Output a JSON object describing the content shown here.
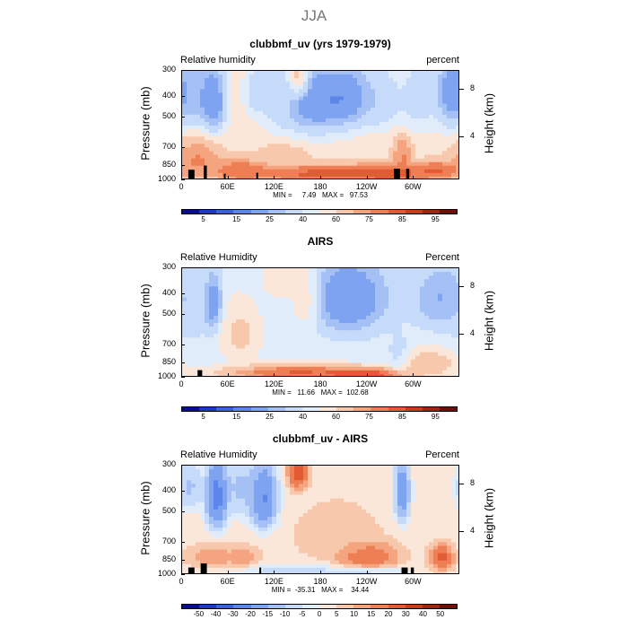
{
  "figure": {
    "title": "JJA"
  },
  "colors": {
    "rh_palette": [
      "#0a0d94",
      "#1f38c4",
      "#3a62dd",
      "#5d86ea",
      "#7ea3f0",
      "#a4c0f5",
      "#c6daf9",
      "#e1ecfb",
      "#fbe6da",
      "#f8c8ad",
      "#f4a47f",
      "#ee7f55",
      "#e25b33",
      "#c83d1c",
      "#a02412",
      "#6e0f09"
    ],
    "diff_palette": [
      "#0a0d94",
      "#1f38c4",
      "#3a62dd",
      "#5d86ea",
      "#7ea3f0",
      "#a4c0f5",
      "#c6daf9",
      "#e1ecfb",
      "#fbe6da",
      "#f8c8ad",
      "#f4a47f",
      "#ee7f55",
      "#e25b33",
      "#c83d1c",
      "#a02412",
      "#6e0f09"
    ],
    "land": "#000000"
  },
  "chart_data": [
    {
      "type": "heatmap",
      "title": "clubbmf_uv (yrs 1979-1979)",
      "variable_label": "Relative humidity",
      "unit_label": "percent",
      "xlabel": "",
      "ylabel": "Pressure (mb)",
      "right_ylabel": "Height (km)",
      "x_ticks": [
        "0",
        "60E",
        "120E",
        "180",
        "120W",
        "60W"
      ],
      "y_ticks": [
        "300",
        "400",
        "500",
        "700",
        "850",
        "1000"
      ],
      "right_ticks": [
        "8",
        "4"
      ],
      "minmax_text": "MIN =     7.49   MAX =   97.53",
      "min": 7.49,
      "max": 97.53,
      "colorbar_labels": [
        "5",
        "15",
        "25",
        "40",
        "60",
        "75",
        "85",
        "95"
      ],
      "features": [
        {
          "lon": 40,
          "p": 420,
          "v": 8,
          "rx": 14,
          "rp": 140
        },
        {
          "lon": 100,
          "p": 380,
          "v": 25,
          "rx": 14,
          "rp": 80
        },
        {
          "lon": 125,
          "p": 430,
          "v": 35,
          "rx": 12,
          "rp": 120
        },
        {
          "lon": 150,
          "p": 320,
          "v": 85,
          "rx": 10,
          "rp": 60
        },
        {
          "lon": 170,
          "p": 420,
          "v": 10,
          "rx": 40,
          "rp": 140
        },
        {
          "lon": 215,
          "p": 400,
          "v": 12,
          "rx": 30,
          "rp": 120
        },
        {
          "lon": 260,
          "p": 420,
          "v": 25,
          "rx": 18,
          "rp": 100
        },
        {
          "lon": 305,
          "p": 400,
          "v": 30,
          "rx": 20,
          "rp": 130
        },
        {
          "lon": 350,
          "p": 380,
          "v": 10,
          "rx": 20,
          "rp": 140
        },
        {
          "lon": 20,
          "p": 400,
          "v": 20,
          "rx": 15,
          "rp": 120
        },
        {
          "lon": 20,
          "p": 800,
          "v": 82,
          "rx": 25,
          "rp": 150
        },
        {
          "lon": 75,
          "p": 900,
          "v": 85,
          "rx": 30,
          "rp": 100
        },
        {
          "lon": 180,
          "p": 930,
          "v": 90,
          "rx": 80,
          "rp": 80
        },
        {
          "lon": 270,
          "p": 930,
          "v": 90,
          "rx": 40,
          "rp": 80
        },
        {
          "lon": 285,
          "p": 750,
          "v": 82,
          "rx": 10,
          "rp": 120
        },
        {
          "lon": 330,
          "p": 900,
          "v": 88,
          "rx": 25,
          "rp": 80
        },
        {
          "lon": 130,
          "p": 780,
          "v": 70,
          "rx": 25,
          "rp": 90
        }
      ],
      "background": 55,
      "land": [
        [
          8,
          16,
          890
        ],
        [
          28,
          32,
          850
        ],
        [
          54,
          56,
          930
        ],
        [
          96,
          98,
          920
        ],
        [
          274,
          282,
          880
        ],
        [
          290,
          294,
          880
        ]
      ]
    },
    {
      "type": "heatmap",
      "title": "AIRS",
      "variable_label": "Relative Humidity",
      "unit_label": "Percent",
      "xlabel": "",
      "ylabel": "Pressure (mb)",
      "right_ylabel": "Height (km)",
      "x_ticks": [
        "0",
        "60E",
        "120E",
        "180",
        "120W",
        "60W"
      ],
      "y_ticks": [
        "300",
        "400",
        "500",
        "700",
        "850",
        "1000"
      ],
      "right_ticks": [
        "8",
        "4"
      ],
      "minmax_text": "MIN =   11.66   MAX =  102.68",
      "min": 11.66,
      "max": 102.68,
      "colorbar_labels": [
        "5",
        "15",
        "25",
        "40",
        "60",
        "75",
        "85",
        "95"
      ],
      "features": [
        {
          "lon": 40,
          "p": 450,
          "v": 12,
          "rx": 10,
          "rp": 120
        },
        {
          "lon": 215,
          "p": 420,
          "v": 12,
          "rx": 45,
          "rp": 150
        },
        {
          "lon": 335,
          "p": 420,
          "v": 18,
          "rx": 30,
          "rp": 120
        },
        {
          "lon": 10,
          "p": 450,
          "v": 30,
          "rx": 20,
          "rp": 150
        },
        {
          "lon": 160,
          "p": 420,
          "v": 65,
          "rx": 15,
          "rp": 120
        },
        {
          "lon": 130,
          "p": 340,
          "v": 60,
          "rx": 20,
          "rp": 60
        },
        {
          "lon": 75,
          "p": 620,
          "v": 68,
          "rx": 20,
          "rp": 150
        },
        {
          "lon": 150,
          "p": 950,
          "v": 92,
          "rx": 80,
          "rp": 70
        },
        {
          "lon": 240,
          "p": 970,
          "v": 95,
          "rx": 40,
          "rp": 60
        },
        {
          "lon": 280,
          "p": 750,
          "v": 35,
          "rx": 10,
          "rp": 120
        },
        {
          "lon": 320,
          "p": 860,
          "v": 75,
          "rx": 25,
          "rp": 100
        }
      ],
      "background": 45,
      "land": [
        [
          20,
          26,
          920
        ]
      ]
    },
    {
      "type": "heatmap",
      "title": "clubbmf_uv - AIRS",
      "variable_label": "Relative Humidity",
      "unit_label": "Percent",
      "xlabel": "",
      "ylabel": "Pressure (mb)",
      "right_ylabel": "Height (km)",
      "x_ticks": [
        "0",
        "60E",
        "120E",
        "180",
        "120W",
        "60W"
      ],
      "y_ticks": [
        "300",
        "400",
        "500",
        "700",
        "850",
        "1000"
      ],
      "right_ticks": [
        "8",
        "4"
      ],
      "minmax_text": "MIN =  -35.31   MAX =    34.44",
      "min": -35.31,
      "max": 34.44,
      "colorbar_labels": [
        "-50",
        "-40",
        "-30",
        "-20",
        "-15",
        "-10",
        "-5",
        "0",
        "5",
        "10",
        "15",
        "20",
        "30",
        "40",
        "50"
      ],
      "features": [
        {
          "lon": 45,
          "p": 420,
          "v": -30,
          "rx": 12,
          "rp": 140
        },
        {
          "lon": 105,
          "p": 430,
          "v": -28,
          "rx": 15,
          "rp": 130
        },
        {
          "lon": 75,
          "p": 380,
          "v": -15,
          "rx": 15,
          "rp": 100
        },
        {
          "lon": 150,
          "p": 320,
          "v": 30,
          "rx": 10,
          "rp": 50
        },
        {
          "lon": 285,
          "p": 400,
          "v": -25,
          "rx": 8,
          "rp": 120
        },
        {
          "lon": 10,
          "p": 380,
          "v": -15,
          "rx": 12,
          "rp": 80
        },
        {
          "lon": 200,
          "p": 650,
          "v": 10,
          "rx": 40,
          "rp": 150
        },
        {
          "lon": 240,
          "p": 820,
          "v": 25,
          "rx": 30,
          "rp": 100
        },
        {
          "lon": 335,
          "p": 830,
          "v": 28,
          "rx": 12,
          "rp": 90
        },
        {
          "lon": 40,
          "p": 820,
          "v": 15,
          "rx": 25,
          "rp": 80
        },
        {
          "lon": 80,
          "p": 830,
          "v": 15,
          "rx": 15,
          "rp": 80
        },
        {
          "lon": 140,
          "p": 960,
          "v": -10,
          "rx": 60,
          "rp": 60
        },
        {
          "lon": 240,
          "p": 970,
          "v": -10,
          "rx": 40,
          "rp": 50
        },
        {
          "lon": 310,
          "p": 850,
          "v": 5,
          "rx": 15,
          "rp": 100
        }
      ],
      "background": 3,
      "land": [
        [
          8,
          16,
          920
        ],
        [
          24,
          32,
          880
        ],
        [
          100,
          102,
          920
        ],
        [
          284,
          292,
          920
        ],
        [
          296,
          300,
          920
        ]
      ]
    }
  ]
}
